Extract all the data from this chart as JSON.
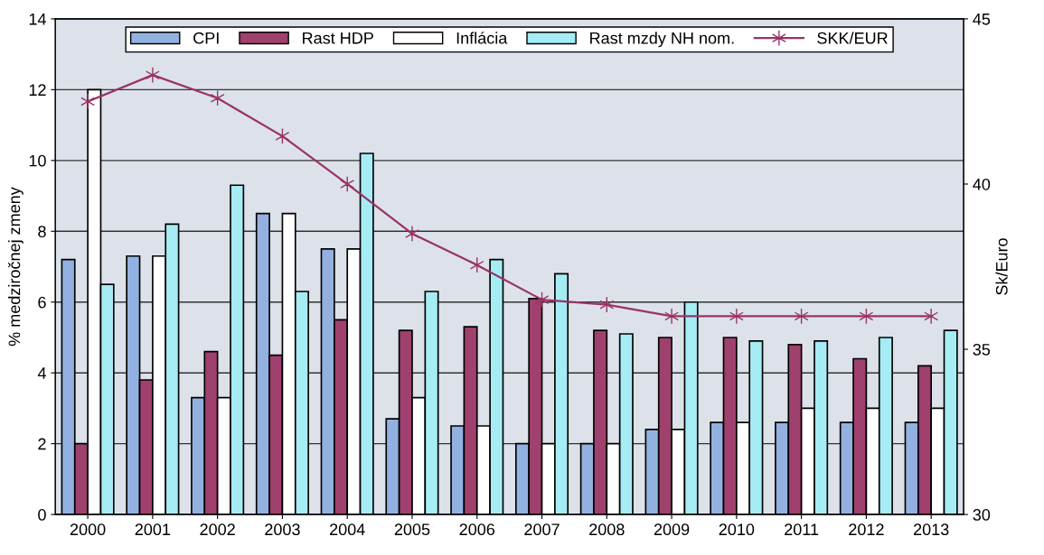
{
  "chart_data": {
    "type": "bar",
    "categories": [
      "2000",
      "2001",
      "2002",
      "2003",
      "2004",
      "2005",
      "2006",
      "2007",
      "2008",
      "2009",
      "2010",
      "2011",
      "2012",
      "2013"
    ],
    "ylabel": "% medziročnej zmeny",
    "y2label": "Sk/Euro",
    "ylim": [
      0,
      14
    ],
    "yticks": [
      0,
      2,
      4,
      6,
      8,
      10,
      12,
      14
    ],
    "y2lim": [
      30,
      45
    ],
    "y2ticks": [
      30,
      35,
      40,
      45
    ],
    "grid": "y",
    "legend": "top",
    "series": [
      {
        "name": "CPI",
        "color": "#93b1e0",
        "values": [
          7.2,
          7.3,
          3.3,
          8.5,
          7.5,
          2.7,
          2.5,
          2.0,
          2.0,
          2.4,
          2.6,
          2.6,
          2.6,
          2.6
        ]
      },
      {
        "name": "Rast HDP",
        "color": "#a0406e",
        "values": [
          2.0,
          3.8,
          4.6,
          4.5,
          5.5,
          5.2,
          5.3,
          6.1,
          5.2,
          5.0,
          5.0,
          4.8,
          4.4,
          4.2
        ]
      },
      {
        "name": "Inflácia",
        "color": "#ffffff",
        "values": [
          12.0,
          7.3,
          3.3,
          8.5,
          7.5,
          3.3,
          2.5,
          2.0,
          2.0,
          2.4,
          2.6,
          3.0,
          3.0,
          3.0
        ]
      },
      {
        "name": "Rast mzdy NH nom.",
        "color": "#a6ecf5",
        "values": [
          6.5,
          8.2,
          9.3,
          6.3,
          10.2,
          6.3,
          7.2,
          6.8,
          5.1,
          6.0,
          4.9,
          4.9,
          5.0,
          5.2
        ]
      },
      {
        "name": "SKK/EUR",
        "type": "line",
        "axis": "y2",
        "color": "#993366",
        "marker": "cross",
        "values": [
          42.5,
          43.3,
          42.6,
          41.45,
          40.0,
          38.5,
          37.55,
          36.5,
          36.35,
          36.0,
          36.0,
          36.0,
          36.0,
          36.0
        ]
      }
    ]
  }
}
